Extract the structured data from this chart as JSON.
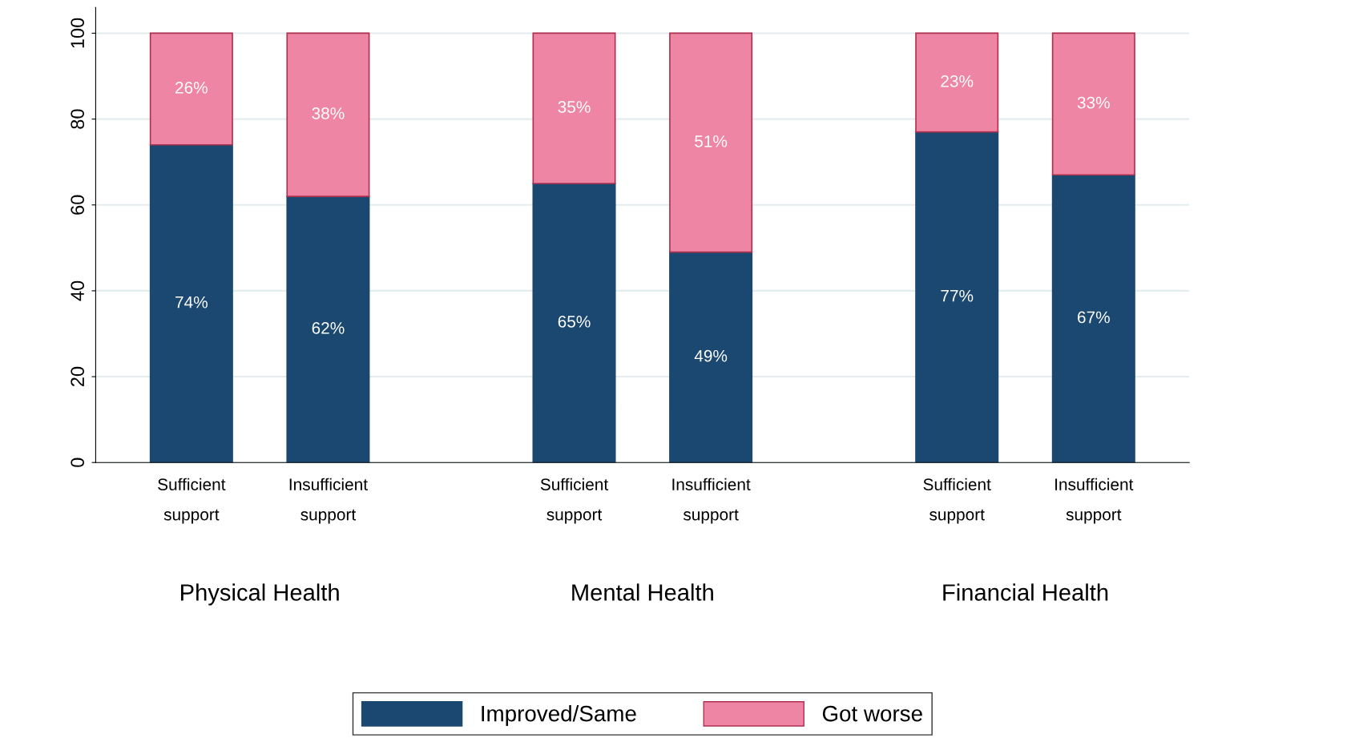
{
  "chart_data": {
    "type": "bar",
    "stacked": true,
    "categories": [
      "Sufficient\nsupport",
      "Insufficient\nsupport",
      "Sufficient\nsupport",
      "Insufficient\nsupport",
      "Sufficient\nsupport",
      "Insufficient\nsupport"
    ],
    "annotations": [
      "Physical Health",
      "Mental Health",
      "Financial Health"
    ],
    "series": [
      {
        "name": "Improved/Same",
        "color": "#1b4870",
        "values": [
          74,
          62,
          65,
          49,
          77,
          67
        ],
        "value_labels": [
          "74%",
          "62%",
          "65%",
          "49%",
          "77%",
          "67%"
        ]
      },
      {
        "name": "Got worse",
        "color": "#ef85a4",
        "values": [
          26,
          38,
          35,
          51,
          23,
          33
        ],
        "value_labels": [
          "26%",
          "38%",
          "35%",
          "51%",
          "23%",
          "33%"
        ]
      }
    ],
    "ylim": [
      0,
      106
    ],
    "yticks": [
      0,
      20,
      40,
      60,
      80,
      100
    ],
    "grid": "y",
    "legend": "bottom"
  }
}
